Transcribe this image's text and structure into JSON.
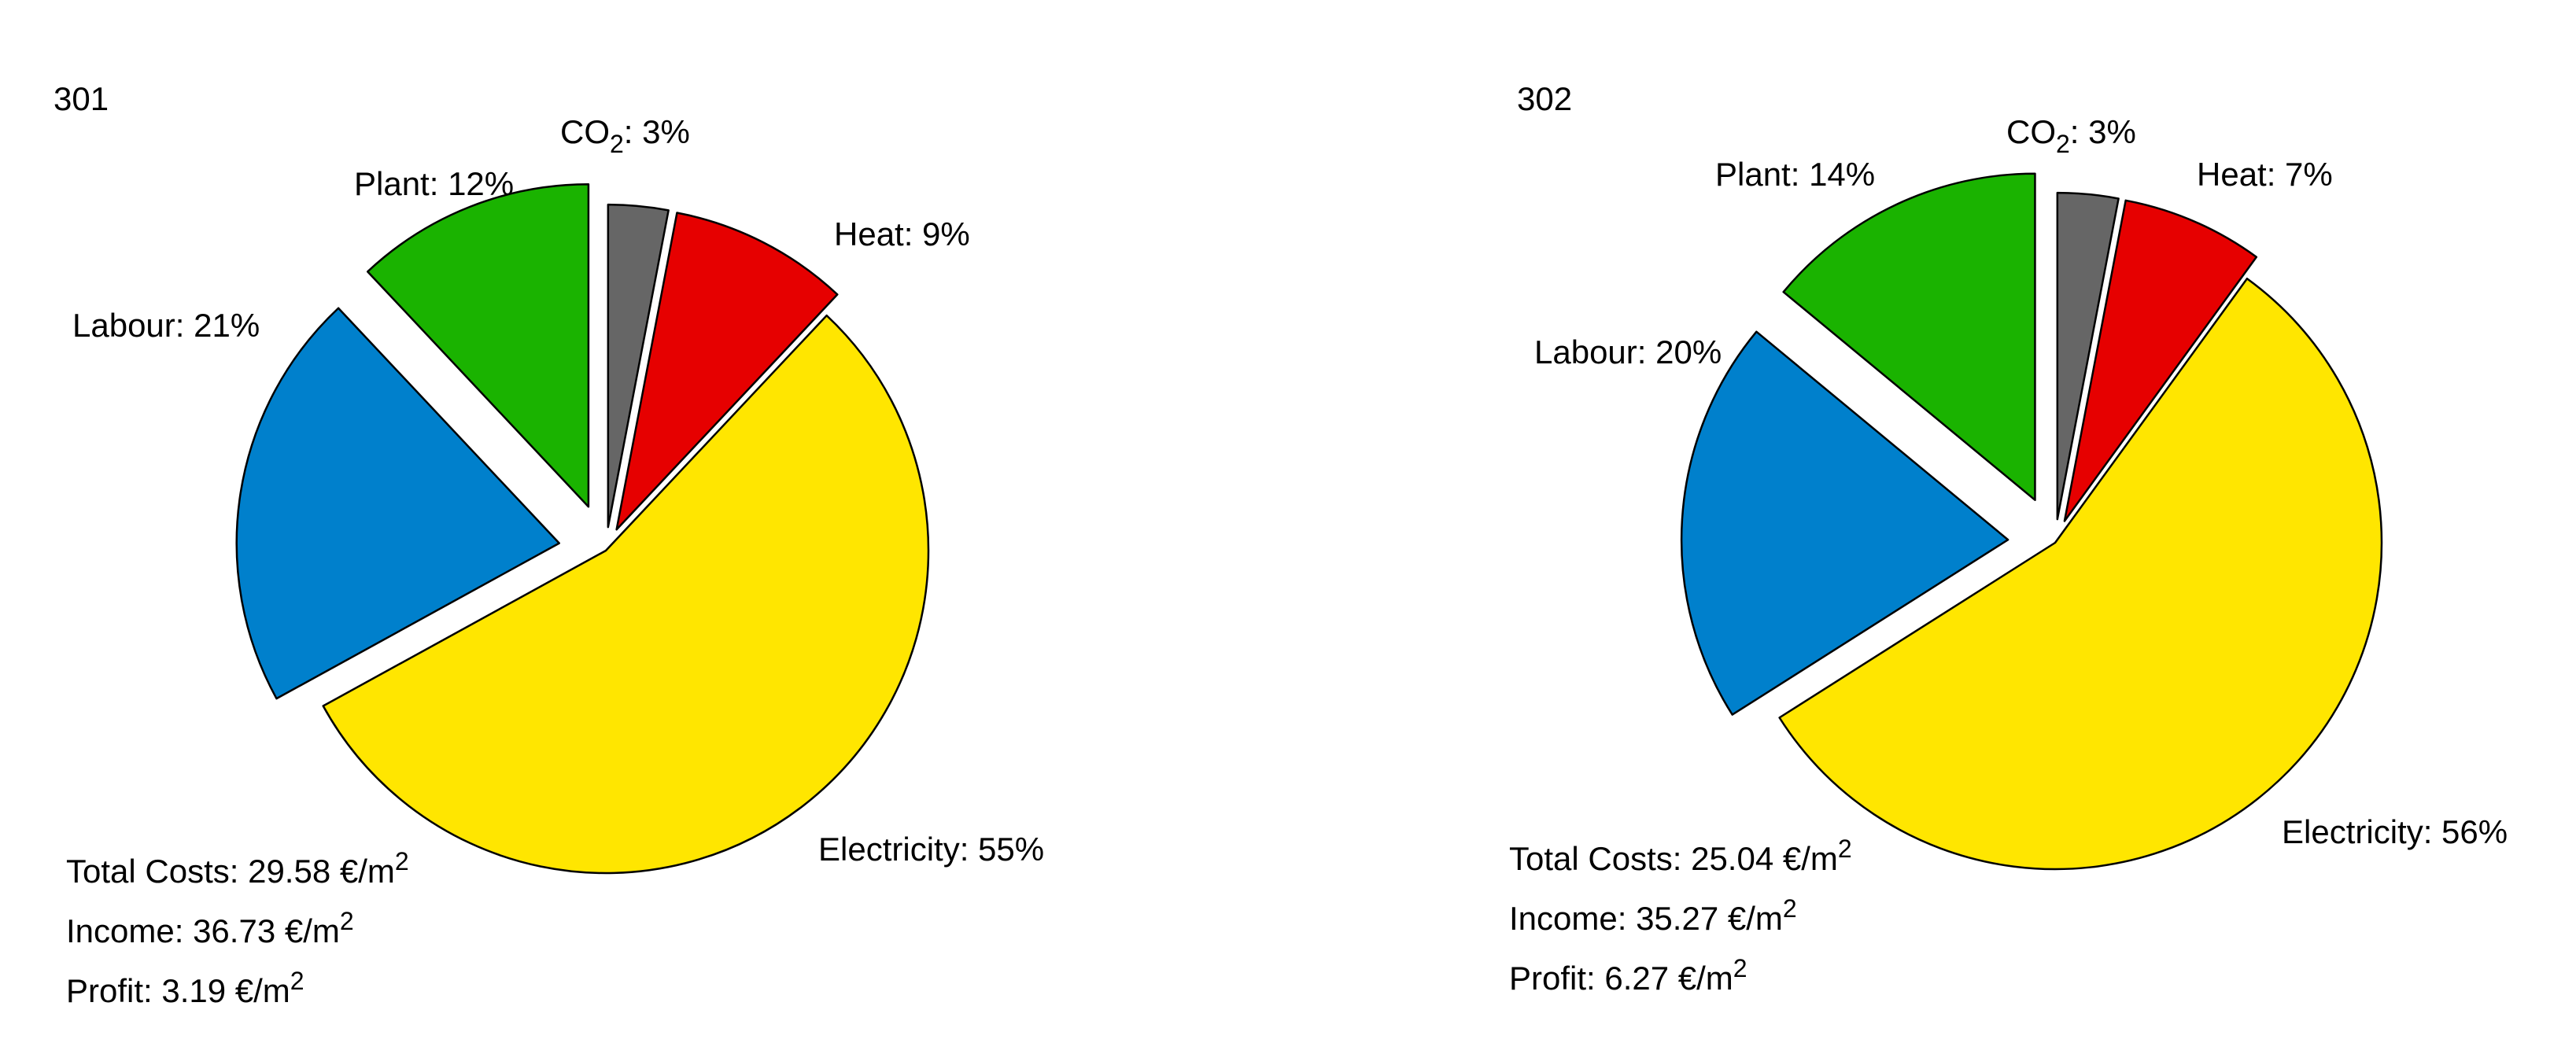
{
  "chart_data": [
    {
      "type": "pie",
      "title": "301",
      "slices": [
        {
          "name": "CO",
          "name_sub": "2",
          "value": 3,
          "label_suffix": ": 3%",
          "color": "#666666"
        },
        {
          "name": "Heat",
          "value": 9,
          "label_suffix": ": 9%",
          "color": "#e60000"
        },
        {
          "name": "Electricity",
          "value": 55,
          "label_suffix": ": 55%",
          "color": "#ffe600"
        },
        {
          "name": "Labour",
          "value": 21,
          "label_suffix": ": 21%",
          "color": "#0080cc"
        },
        {
          "name": "Plant",
          "value": 12,
          "label_suffix": ": 12%",
          "color": "#1ab300"
        }
      ],
      "summary": [
        {
          "text": "Total Costs: 29.58 €/m",
          "sup": "2"
        },
        {
          "text": "Income: 36.73 €/m",
          "sup": "2"
        },
        {
          "text": "Profit: 3.19 €/m",
          "sup": "2"
        }
      ]
    },
    {
      "type": "pie",
      "title": "302",
      "slices": [
        {
          "name": "CO",
          "name_sub": "2",
          "value": 3,
          "label_suffix": ": 3%",
          "color": "#666666"
        },
        {
          "name": "Heat",
          "value": 7,
          "label_suffix": ": 7%",
          "color": "#e60000"
        },
        {
          "name": "Electricity",
          "value": 56,
          "label_suffix": ": 56%",
          "color": "#ffe600"
        },
        {
          "name": "Labour",
          "value": 20,
          "label_suffix": ": 20%",
          "color": "#0080cc"
        },
        {
          "name": "Plant",
          "value": 14,
          "label_suffix": ": 14%",
          "color": "#1ab300"
        }
      ],
      "summary": [
        {
          "text": "Total Costs: 25.04 €/m",
          "sup": "2"
        },
        {
          "text": "Income: 35.27 €/m",
          "sup": "2"
        },
        {
          "text": "Profit: 6.27 €/m",
          "sup": "2"
        }
      ]
    }
  ]
}
